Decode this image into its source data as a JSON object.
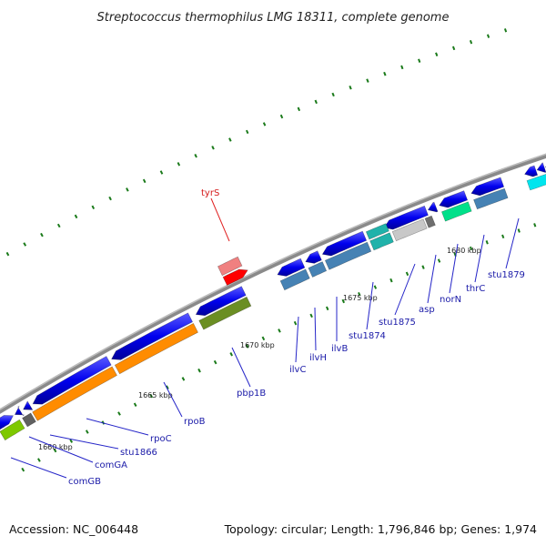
{
  "title": "Streptococcus thermophilus LMG 18311, complete genome",
  "footer": {
    "accession": "Accession: NC_006448",
    "topology": "Topology: circular; Length: 1,796,846 bp; Genes: 1,974"
  },
  "ticks": [
    {
      "label": "1660 kbp"
    },
    {
      "label": "1665 kbp"
    },
    {
      "label": "1670 kbp"
    },
    {
      "label": "1675 kbp"
    },
    {
      "label": "1680 kbp"
    }
  ],
  "genes": [
    {
      "name": "comGB",
      "color": "#7ec800"
    },
    {
      "name": "comGA",
      "color": "#606060"
    },
    {
      "name": "stu1866",
      "color": "#ff8c00"
    },
    {
      "name": "rpoC",
      "color": "#ff8c00"
    },
    {
      "name": "rpoB",
      "color": "#ff8c00"
    },
    {
      "name": "pbp1B",
      "color": "#6b8e23"
    },
    {
      "name": "tyrS",
      "color": "#ff0000"
    },
    {
      "name": "ilvC",
      "color": "#4682b4"
    },
    {
      "name": "ilvH",
      "color": "#4682b4"
    },
    {
      "name": "ilvB",
      "color": "#4682b4"
    },
    {
      "name": "stu1874",
      "color": "#20b2aa"
    },
    {
      "name": "stu1875",
      "color": "#c8c8c8"
    },
    {
      "name": "asp",
      "color": "#00e08a"
    },
    {
      "name": "norN",
      "color": "#00e08a"
    },
    {
      "name": "thrC",
      "color": "#4682b4"
    },
    {
      "name": "stu1879",
      "color": "#00e5ee"
    }
  ]
}
